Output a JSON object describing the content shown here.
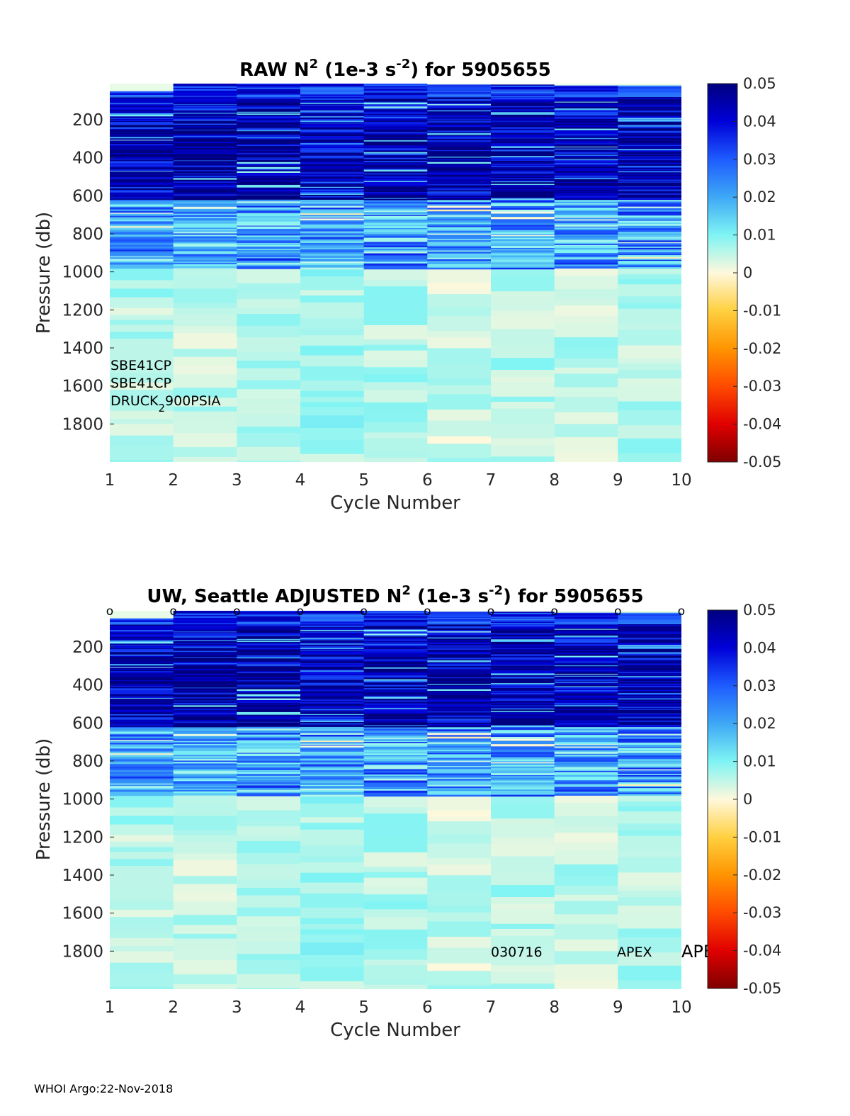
{
  "footer": "WHOI Argo:22-Nov-2018",
  "chart_data": [
    {
      "type": "heatmap",
      "title": {
        "prefix": "RAW N",
        "sup1": "2",
        "mid": " (1e-3 s",
        "sup2": "-2",
        "suffix": ") for 5905655"
      },
      "xlabel": "Cycle Number",
      "ylabel": "Pressure (db)",
      "xlim": [
        1,
        10
      ],
      "ylim": [
        2000,
        10
      ],
      "xticks": [
        "1",
        "2",
        "3",
        "4",
        "5",
        "6",
        "7",
        "8",
        "9",
        "10"
      ],
      "yticks": [
        "200",
        "400",
        "600",
        "800",
        "1000",
        "1200",
        "1400",
        "1600",
        "1800"
      ],
      "colorbar": {
        "limits": [
          -0.05,
          0.05
        ],
        "ticks": [
          "0.05",
          "0.04",
          "0.03",
          "0.02",
          "0.01",
          "0",
          "-0.01",
          "-0.02",
          "-0.03",
          "-0.04",
          "-0.05"
        ]
      },
      "annotations": {
        "sensor1": "SBE41CP",
        "sensor2": "SBE41CP",
        "pressure_sensor_a": "DRUCK",
        "pressure_sensor_sub": "2",
        "pressure_sensor_b": "900PSIA"
      },
      "cycles": [
        1,
        2,
        3,
        4,
        5,
        6,
        7,
        8,
        9
      ],
      "surface_pressure_db": [
        50,
        10,
        10,
        10,
        10,
        15,
        15,
        20,
        20
      ],
      "deep_value_n2": [
        0.006,
        0.005,
        0.005,
        0.007,
        0.006,
        0.004,
        0.006,
        0.005,
        0.006
      ]
    },
    {
      "type": "heatmap",
      "title": {
        "prefix": "UW, Seattle  ADJUSTED N",
        "sup1": "2",
        "mid": " (1e-3 s",
        "sup2": "-2",
        "suffix": ") for 5905655"
      },
      "xlabel": "Cycle Number",
      "ylabel": "Pressure (db)",
      "xlim": [
        1,
        10
      ],
      "ylim": [
        2000,
        10
      ],
      "xticks": [
        "1",
        "2",
        "3",
        "4",
        "5",
        "6",
        "7",
        "8",
        "9",
        "10"
      ],
      "yticks": [
        "200",
        "400",
        "600",
        "800",
        "1000",
        "1200",
        "1400",
        "1600",
        "1800"
      ],
      "colorbar": {
        "limits": [
          -0.05,
          0.05
        ],
        "ticks": [
          "0.05",
          "0.04",
          "0.03",
          "0.02",
          "0.01",
          "0",
          "-0.01",
          "-0.02",
          "-0.03",
          "-0.04",
          "-0.05"
        ]
      },
      "qc_markers": [
        "o",
        "o",
        "o",
        "o",
        "o",
        "o",
        "o",
        "o",
        "o",
        "o"
      ],
      "annotations": {
        "date": "030716",
        "float_type": "APEX",
        "float_type_2": "APE"
      },
      "cycles": [
        1,
        2,
        3,
        4,
        5,
        6,
        7,
        8,
        9
      ],
      "surface_pressure_db": [
        50,
        10,
        10,
        10,
        10,
        15,
        15,
        20,
        20
      ],
      "deep_value_n2": [
        0.006,
        0.005,
        0.005,
        0.007,
        0.006,
        0.004,
        0.006,
        0.005,
        0.006
      ]
    }
  ]
}
